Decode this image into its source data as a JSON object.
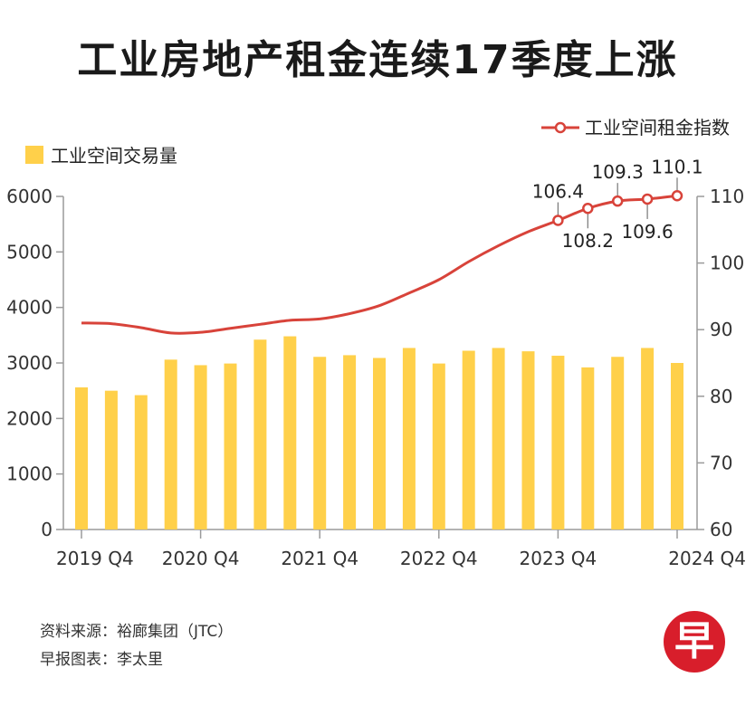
{
  "title": "工业房地产租金连续17季度上涨",
  "legend": {
    "bar_label": "工业空间交易量",
    "line_label": "工业空间租金指数"
  },
  "source": {
    "line1": "资料来源：裕廊集团（JTC）",
    "line2": "早报图表：李太里"
  },
  "logo_text": "早",
  "colors": {
    "bar": "#FFD04A",
    "line": "#D8433A",
    "axis_text": "#333333",
    "grid": "#9a9a9a"
  },
  "chart_data": {
    "type": "bar+line",
    "x_tick_labels": [
      "2019 Q4",
      "2020 Q4",
      "2021 Q4",
      "2022 Q4",
      "2023 Q4",
      "2024 Q4"
    ],
    "bar_series": {
      "name": "工业空间交易量",
      "values": [
        2560,
        2500,
        2420,
        3060,
        2960,
        2990,
        3420,
        3480,
        3110,
        3140,
        3090,
        3270,
        2990,
        3220,
        3270,
        3210,
        3130,
        2920,
        3110,
        3270,
        3000
      ]
    },
    "line_series": {
      "name": "工业空间租金指数",
      "values": [
        91.0,
        90.9,
        90.3,
        89.5,
        89.6,
        90.2,
        90.8,
        91.4,
        91.6,
        92.4,
        93.6,
        95.5,
        97.5,
        100.2,
        102.6,
        104.7,
        106.4,
        108.2,
        109.3,
        109.6,
        110.1
      ],
      "labeled_points": [
        {
          "index": 16,
          "value": 106.4,
          "label": "106.4"
        },
        {
          "index": 17,
          "value": 108.2,
          "label": "108.2"
        },
        {
          "index": 18,
          "value": 109.3,
          "label": "109.3"
        },
        {
          "index": 19,
          "value": 109.6,
          "label": "109.6"
        },
        {
          "index": 20,
          "value": 110.1,
          "label": "110.1"
        }
      ]
    },
    "y_left": {
      "min": 0,
      "max": 6000,
      "ticks": [
        0,
        1000,
        2000,
        3000,
        4000,
        5000,
        6000
      ]
    },
    "y_right": {
      "min": 60,
      "max": 110,
      "ticks": [
        60,
        70,
        80,
        90,
        100,
        110
      ]
    }
  }
}
